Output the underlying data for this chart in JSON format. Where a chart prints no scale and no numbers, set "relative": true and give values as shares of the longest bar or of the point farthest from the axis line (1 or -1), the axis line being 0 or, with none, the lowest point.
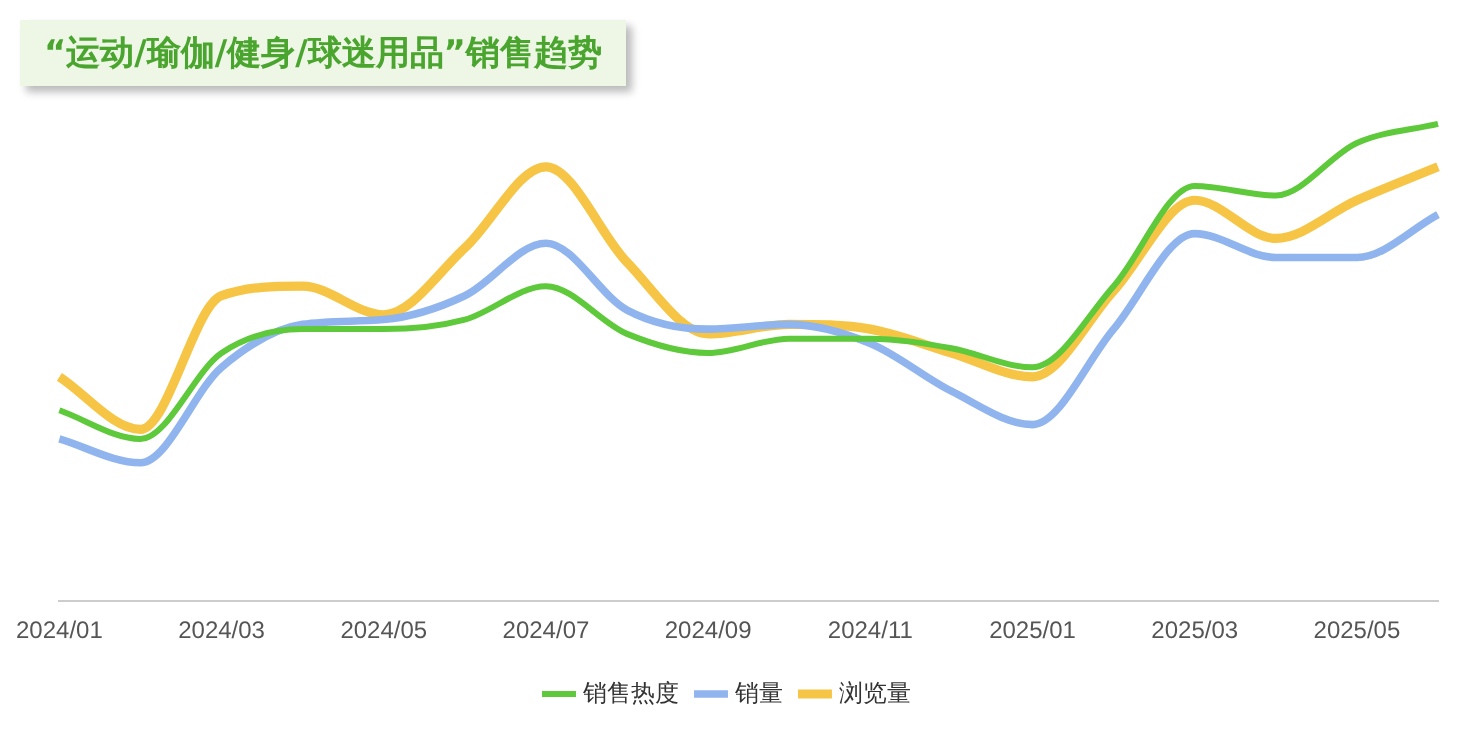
{
  "chart_data": {
    "type": "line",
    "title": "“运动/瑜伽/健身/球迷用品”销售趋势",
    "relative": true,
    "legend": "bottom",
    "grid": false,
    "marker": "none",
    "categories": [
      "2024/01",
      null,
      "2024/03",
      null,
      "2024/05",
      null,
      "2024/07",
      null,
      "2024/09",
      null,
      "2024/11",
      null,
      "2025/01",
      null,
      "2025/03",
      null,
      "2025/05",
      null
    ],
    "series": [
      {
        "name": "销售热度",
        "color": "#5ec93a",
        "values": [
          0.4,
          0.34,
          0.52,
          0.57,
          0.57,
          0.59,
          0.66,
          0.56,
          0.52,
          0.55,
          0.55,
          0.53,
          0.49,
          0.66,
          0.87,
          0.85,
          0.96,
          1
        ]
      },
      {
        "name": "销量",
        "color": "#8fb4ee",
        "values": [
          0.34,
          0.29,
          0.49,
          0.58,
          0.59,
          0.64,
          0.75,
          0.61,
          0.57,
          0.58,
          0.54,
          0.44,
          0.37,
          0.57,
          0.77,
          0.72,
          0.72,
          0.81
        ]
      },
      {
        "name": "浏览量",
        "color": "#f7c546",
        "values": [
          0.47,
          0.36,
          0.64,
          0.66,
          0.6,
          0.74,
          0.91,
          0.71,
          0.56,
          0.58,
          0.57,
          0.52,
          0.47,
          0.65,
          0.84,
          0.76,
          0.84,
          0.91
        ]
      }
    ]
  }
}
